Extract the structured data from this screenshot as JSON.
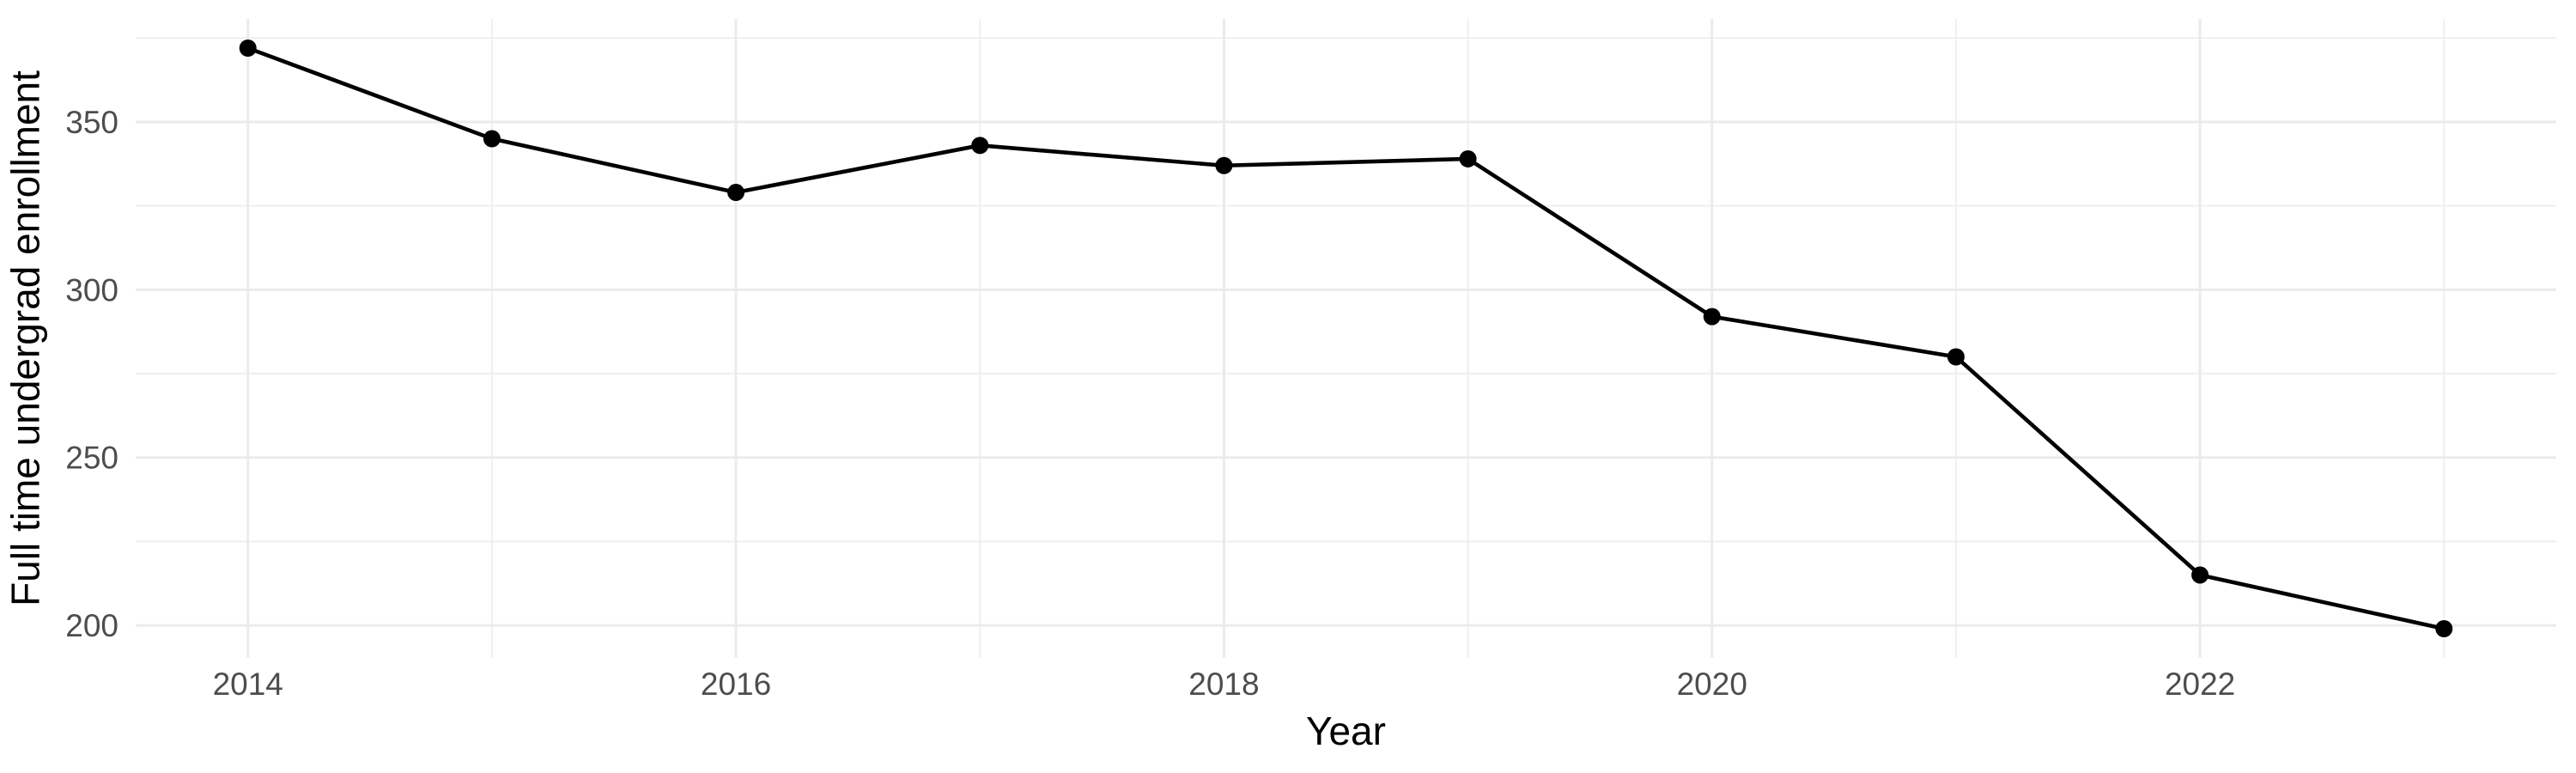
{
  "figure": {
    "background": "#FFFFFF"
  },
  "chart_data": {
    "type": "line",
    "title": "",
    "xlabel": "Year",
    "ylabel": "Full time undergrad enrollment",
    "x": [
      2014,
      2015,
      2016,
      2017,
      2018,
      2019,
      2020,
      2021,
      2022,
      2023
    ],
    "values": [
      372,
      345,
      329,
      343,
      337,
      339,
      292,
      280,
      215,
      199
    ],
    "xlim": [
      2013.54,
      2023.46
    ],
    "ylim": [
      190.3,
      380.7
    ],
    "x_major_ticks": [
      2014,
      2016,
      2018,
      2020,
      2022
    ],
    "x_tick_labels": [
      "2014",
      "2016",
      "2018",
      "2020",
      "2022"
    ],
    "x_minor_ticks": [
      2015,
      2017,
      2019,
      2021,
      2023
    ],
    "y_major_ticks": [
      200,
      250,
      300,
      350
    ],
    "y_tick_labels": [
      "200",
      "250",
      "300",
      "350"
    ],
    "y_minor_ticks": [
      225,
      275,
      325,
      375
    ],
    "grid": "major-and-minor",
    "legend": "none",
    "markers": true,
    "colors": {
      "line": "#000000",
      "point": "#000000",
      "grid_major": "#EBEBEB",
      "grid_minor": "#EDEDED",
      "tick_label": "#4D4D4D",
      "axis_title": "#000000",
      "background": "#FFFFFF"
    }
  }
}
